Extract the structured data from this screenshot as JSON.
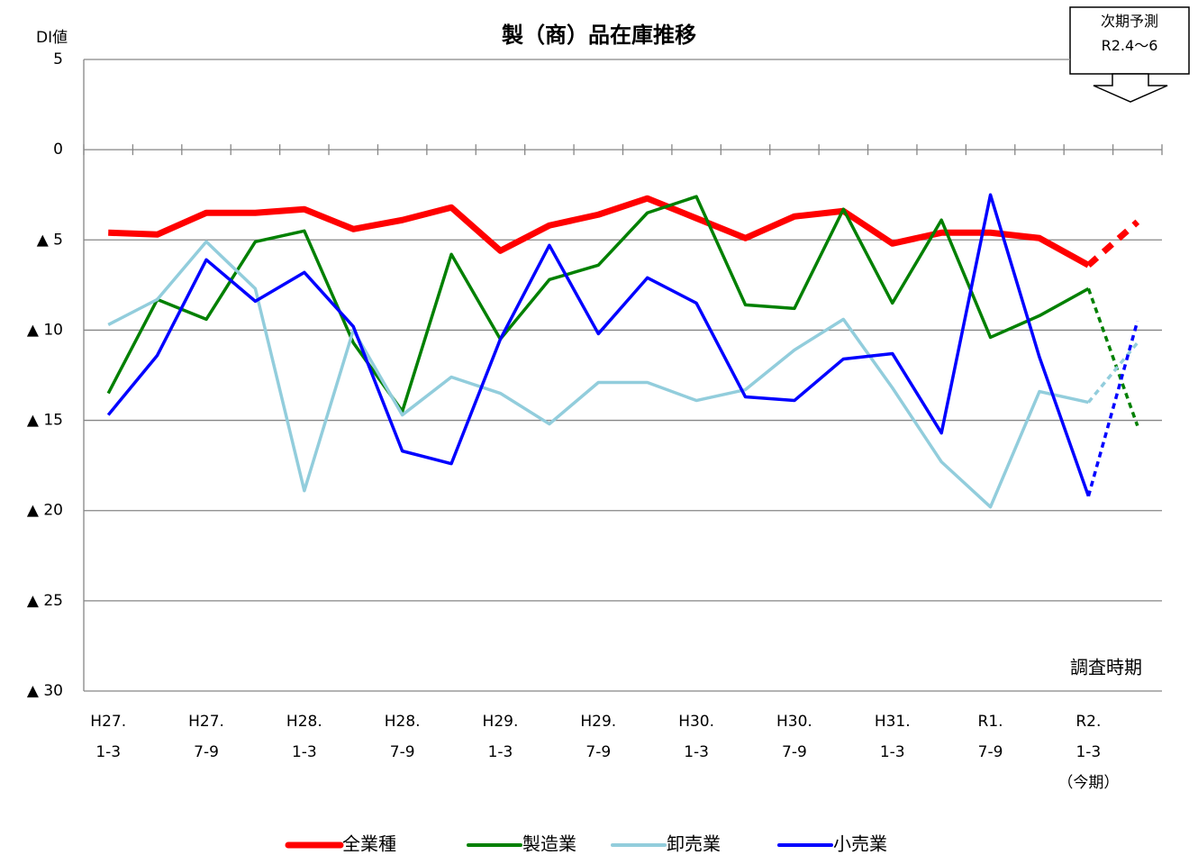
{
  "chart_data": {
    "type": "line",
    "title": "製（商）品在庫推移",
    "y_label": "DI値",
    "x_label": "調査時期",
    "annotation": "次期予測\nR2.4〜6",
    "categories": [
      "H27.\n1-3",
      null,
      "H27.\n7-9",
      null,
      "H28.\n1-3",
      null,
      "H28.\n7-9",
      null,
      "H29.\n1-3",
      null,
      "H29.\n7-9",
      null,
      "H30.\n1-3",
      null,
      "H30.\n7-9",
      null,
      "H31.\n1-3",
      null,
      "R1.\n7-9",
      null,
      "R2.\n1-3\n（今期）",
      null
    ],
    "series": [
      {
        "name": "全業種",
        "color": "#ff0000",
        "width": 7,
        "values": [
          -4.6,
          -4.7,
          -3.5,
          -3.5,
          -3.3,
          -4.4,
          -3.9,
          -3.2,
          -5.6,
          -4.2,
          -3.6,
          -2.7,
          -3.8,
          -4.9,
          -3.7,
          -3.4,
          -5.2,
          -4.6,
          -4.6,
          -4.9,
          -6.4,
          -4.0
        ]
      },
      {
        "name": "製造業",
        "color": "#008000",
        "width": 3.5,
        "values": [
          -13.5,
          -8.3,
          -9.4,
          -5.1,
          -4.5,
          -10.7,
          -14.5,
          -5.8,
          -10.5,
          -7.2,
          -6.4,
          -3.5,
          -2.6,
          -8.6,
          -8.8,
          -3.3,
          -8.5,
          -3.9,
          -10.4,
          -9.2,
          -7.7,
          -15.3
        ]
      },
      {
        "name": "卸売業",
        "color": "#92cddc",
        "width": 3.5,
        "values": [
          -9.7,
          -8.3,
          -5.1,
          -7.7,
          -18.9,
          -10.0,
          -14.7,
          -12.6,
          -13.5,
          -15.2,
          -12.9,
          -12.9,
          -13.9,
          -13.3,
          -11.1,
          -9.4,
          -13.2,
          -17.3,
          -19.8,
          -13.4,
          -14.0,
          -10.7
        ]
      },
      {
        "name": "小売業",
        "color": "#0000ff",
        "width": 3.5,
        "values": [
          -14.7,
          -11.4,
          -6.1,
          -8.4,
          -6.8,
          -9.8,
          -16.7,
          -17.4,
          -10.5,
          -5.3,
          -10.2,
          -7.1,
          -8.5,
          -13.7,
          -13.9,
          -11.6,
          -11.3,
          -15.7,
          -2.5,
          -11.5,
          -19.2,
          -9.5
        ]
      }
    ],
    "dashed_from_index": 20,
    "ylim": [
      -30,
      5
    ],
    "yticks": [
      {
        "value": -30,
        "label": "▲ 30"
      },
      {
        "value": -25,
        "label": "▲ 25"
      },
      {
        "value": -20,
        "label": "▲ 20"
      },
      {
        "value": -15,
        "label": "▲ 15"
      },
      {
        "value": -10,
        "label": "▲ 10"
      },
      {
        "value": -5,
        "label": "▲ 5"
      },
      0,
      5
    ],
    "grid": true,
    "legend": "bottom"
  }
}
